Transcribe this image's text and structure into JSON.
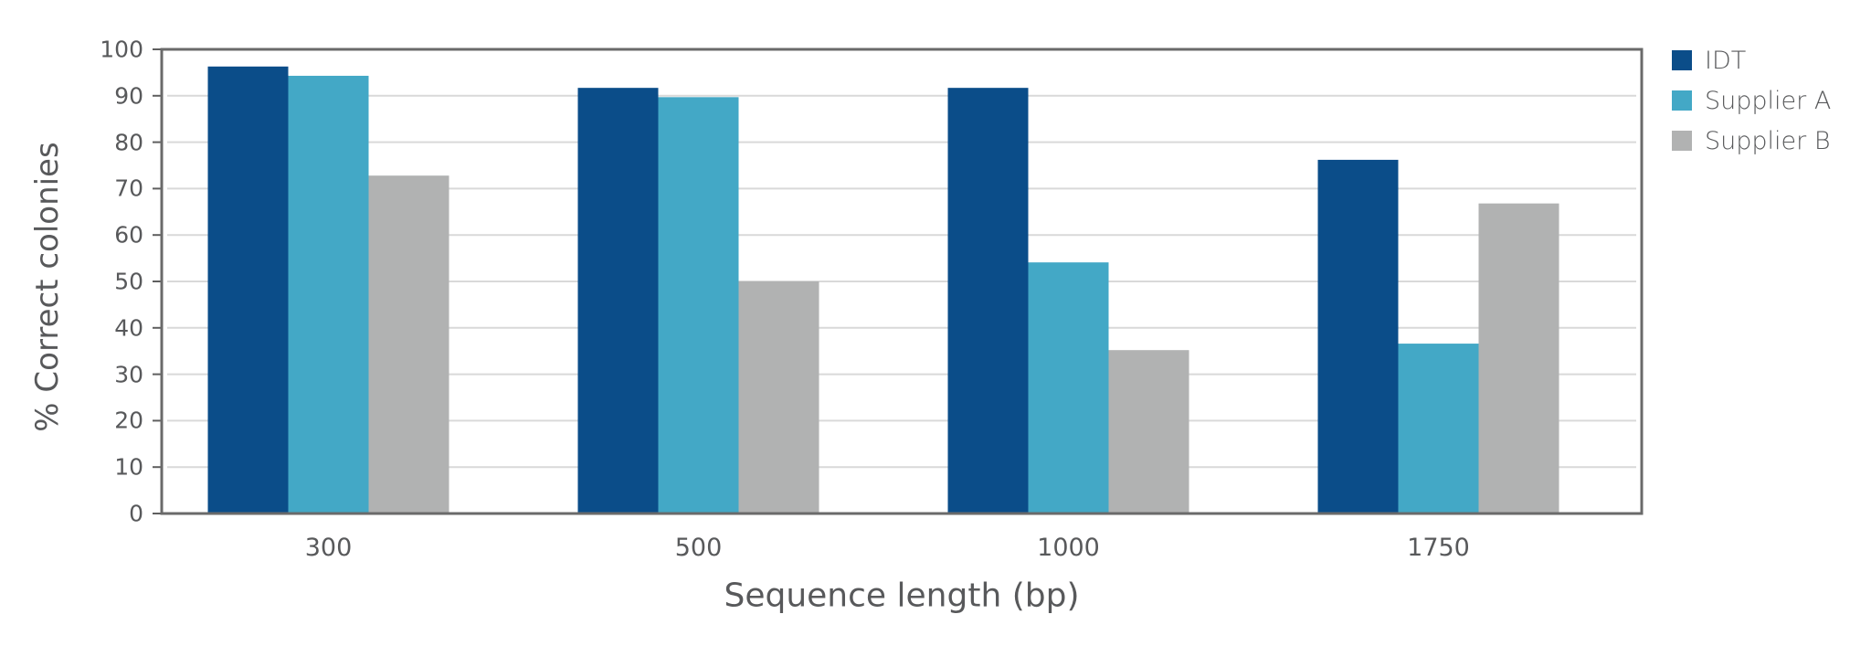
{
  "chart_data": {
    "type": "bar",
    "title": "",
    "xlabel": "Sequence length (bp)",
    "ylabel": "% Correct colonies",
    "categories": [
      "300",
      "500",
      "1000",
      "1750"
    ],
    "series": [
      {
        "name": "IDT",
        "color": "#0b4d89",
        "values": [
          96.3,
          91.7,
          91.7,
          76.2
        ]
      },
      {
        "name": "Supplier A",
        "color": "#43a8c6",
        "values": [
          94.3,
          89.7,
          54.1,
          36.6
        ]
      },
      {
        "name": "Supplier B",
        "color": "#b1b2b2",
        "values": [
          72.8,
          50.0,
          35.2,
          66.8
        ]
      }
    ],
    "ylim": [
      0,
      100
    ],
    "yticks": [
      "0",
      "10",
      "20",
      "30",
      "40",
      "50",
      "60",
      "70",
      "80",
      "90",
      "100"
    ],
    "grid": true,
    "legend_position": "right"
  }
}
